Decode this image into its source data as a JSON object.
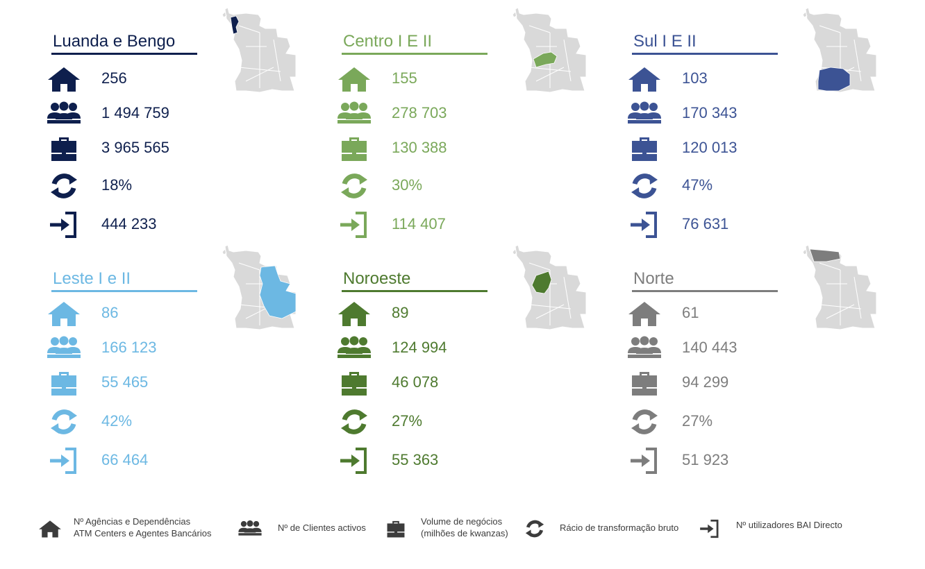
{
  "regions": [
    {
      "name": "Luanda e Bengo",
      "color": "#0e1f4d",
      "stats": [
        "256",
        "1 494 759",
        "3 965 565",
        "18%",
        "444 233"
      ]
    },
    {
      "name": "Centro I E II",
      "color": "#7aa85a",
      "stats": [
        "155",
        "278 703",
        "130 388",
        "30%",
        "114 407"
      ]
    },
    {
      "name": "Sul I E II",
      "color": "#3c5394",
      "stats": [
        "103",
        "170 343",
        "120 013",
        "47%",
        "76 631"
      ]
    },
    {
      "name": "Leste I e II",
      "color": "#6cb8e3",
      "stats": [
        "86",
        "166 123",
        "55 465",
        "42%",
        "66 464"
      ]
    },
    {
      "name": "Noroeste",
      "color": "#4e7a2f",
      "stats": [
        "89",
        "124 994",
        "46 078",
        "27%",
        "55 363"
      ]
    },
    {
      "name": "Norte",
      "color": "#7d7d7d",
      "stats": [
        "61",
        "140 443",
        "94 299",
        "27%",
        "51 923"
      ]
    }
  ],
  "icons": [
    "house-icon",
    "people-icon",
    "briefcase-icon",
    "refresh-cycle-icon",
    "login-arrow-icon"
  ],
  "legend": {
    "agencies": "Nº Agências e Dependências",
    "agencies2": "ATM Centers e Agentes Bancários",
    "clients": "Nº de Clientes activos",
    "volume": "Volume de negócios",
    "volume2": "(milhões de kwanzas)",
    "ratio": "Rácio de transformação bruto",
    "users": "Nº utilizadores BAI Directo"
  },
  "legend_color": "#3c3c3c",
  "map_base_color": "#d9d9d9"
}
